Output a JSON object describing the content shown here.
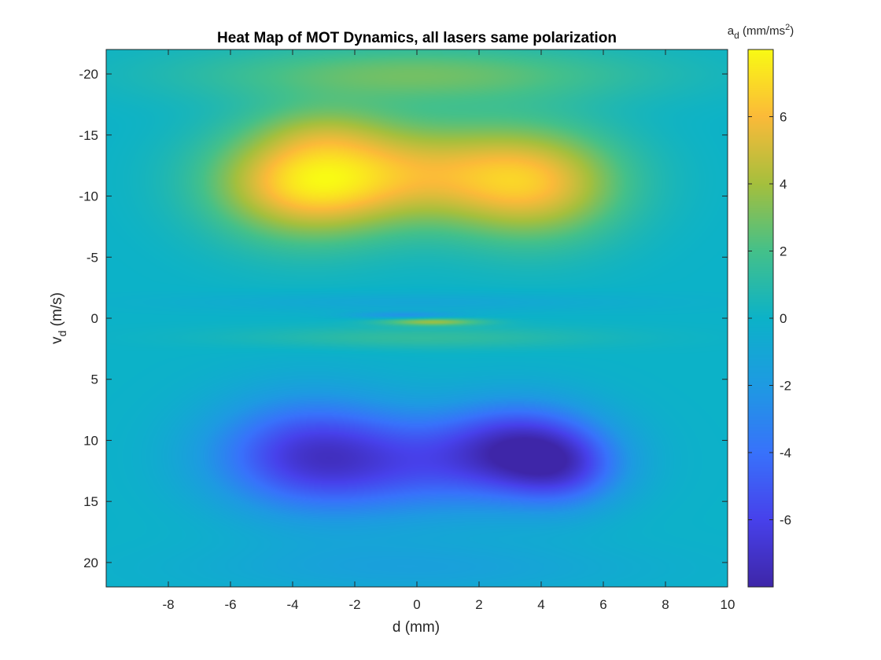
{
  "chart_data": {
    "type": "heatmap",
    "title": "Heat Map of MOT Dynamics, all lasers same polarization",
    "xlabel": "d (mm)",
    "ylabel": {
      "main": "v",
      "sub": "d",
      "unit": " (m/s)"
    },
    "xlim": [
      -10,
      10
    ],
    "ylim": [
      -22,
      22
    ],
    "y_axis_reversed": true,
    "x_ticks": [
      -8,
      -6,
      -4,
      -2,
      0,
      2,
      4,
      6,
      8,
      10
    ],
    "x_tick_labels": [
      "-8",
      "-6",
      "-4",
      "-2",
      "0",
      "2",
      "4",
      "6",
      "8",
      "10"
    ],
    "y_ticks": [
      -20,
      -15,
      -10,
      -5,
      0,
      5,
      10,
      15,
      20
    ],
    "y_tick_labels": [
      "-20",
      "-15",
      "-10",
      "-5",
      "0",
      "5",
      "10",
      "15",
      "20"
    ],
    "colorbar": {
      "title": {
        "main": "a",
        "sub": "d",
        "unit_pre": " (mm/ms",
        "sup": "2",
        "unit_post": ")"
      },
      "limits": [
        -8,
        8
      ],
      "ticks": [
        -6,
        -4,
        -2,
        0,
        2,
        4,
        6
      ],
      "tick_labels": [
        "-6",
        "-4",
        "-2",
        "0",
        "2",
        "4",
        "6"
      ],
      "colormap": "parula"
    },
    "features": [
      {
        "x": -3.5,
        "v": -11,
        "value": 7.5
      },
      {
        "x": 3.8,
        "v": -11,
        "value": 6.0
      },
      {
        "x": 0,
        "v": -12,
        "value": 5.5
      },
      {
        "x": 0,
        "v": -20,
        "value": 3.0
      },
      {
        "x": -3.5,
        "v": 11,
        "value": -6.6
      },
      {
        "x": 3.2,
        "v": 10,
        "value": -7.6
      },
      {
        "x": 0,
        "v": 12,
        "value": -6.0
      },
      {
        "x": -0.3,
        "v": -0.2,
        "value": -2.0
      },
      {
        "x": 0.5,
        "v": 0.3,
        "value": 3.5
      }
    ],
    "grid": false
  }
}
